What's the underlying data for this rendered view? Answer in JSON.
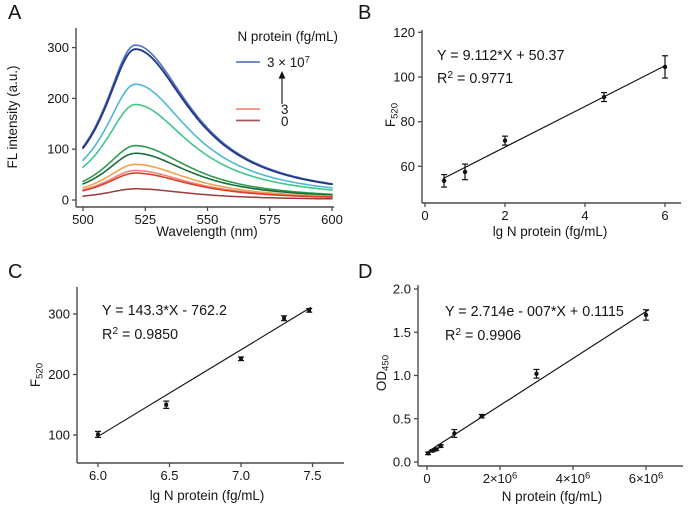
{
  "figure": {
    "background": "#ffffff",
    "axis_color": "#4a4a4a",
    "text_color": "#161616",
    "marker_color": "#111111"
  },
  "chart_data": [
    {
      "panel": "A",
      "type": "line",
      "xlabel": "Wavelength (nm)",
      "ylabel": "FL intensity (a.u.)",
      "xlim": [
        497,
        601
      ],
      "ylim": [
        0,
        340
      ],
      "grid": false,
      "xticks": [
        500,
        525,
        550,
        575,
        600
      ],
      "xtick_labels": [
        "500",
        "525",
        "550",
        "575",
        "600"
      ],
      "yticks": [
        0,
        100,
        200,
        300
      ],
      "ytick_labels": [
        "0",
        "100",
        "200",
        "300"
      ],
      "legend": {
        "title": "N protein (fg/mL)",
        "entries": [
          {
            "label": "3 × 10^{7}",
            "color": "#5d7ccf"
          },
          {
            "label": "3",
            "color": "#f28b7d"
          },
          {
            "label": "0",
            "color": "#b25454"
          }
        ],
        "arrow": "up"
      },
      "spectral_shape": {
        "peak_nm": 521,
        "gamma_left_nm": 15.2,
        "gamma_right_nm": 27,
        "x_start": 500,
        "x_end": 600,
        "x_step": 1
      },
      "series": [
        {
          "name": "curve-1-highest",
          "color": "#4e6ec9",
          "peak_intensity": 305,
          "width": 1.6
        },
        {
          "name": "curve-2",
          "color": "#253a85",
          "peak_intensity": 297,
          "width": 1.9
        },
        {
          "name": "curve-3",
          "color": "#4fb8d6",
          "peak_intensity": 228,
          "width": 1.6
        },
        {
          "name": "curve-4",
          "color": "#41c68a",
          "peak_intensity": 188,
          "width": 1.6
        },
        {
          "name": "curve-5",
          "color": "#2e9b4f",
          "peak_intensity": 107,
          "width": 1.6
        },
        {
          "name": "curve-6",
          "color": "#1d6b38",
          "peak_intensity": 92,
          "width": 1.6
        },
        {
          "name": "curve-7",
          "color": "#f0a352",
          "peak_intensity": 70,
          "width": 1.6
        },
        {
          "name": "curve-8",
          "color": "#ef8477",
          "peak_intensity": 58,
          "width": 1.6
        },
        {
          "name": "curve-9",
          "color": "#e03e2a",
          "peak_intensity": 53,
          "width": 1.6
        },
        {
          "name": "curve-10-blank",
          "color": "#9c3a3a",
          "peak_intensity": 22,
          "width": 1.5
        }
      ]
    },
    {
      "panel": "B",
      "type": "scatter",
      "marker": "circle",
      "equation": "Y = 9.112*X + 50.37",
      "r_squared": "R^{2} = 0.9771",
      "fit_line": {
        "slope": 9.112,
        "intercept": 50.37,
        "x_start": 0.45,
        "x_end": 6.03
      },
      "points": [
        {
          "x": 0.477,
          "y": 53.5,
          "err": 2.8
        },
        {
          "x": 1.0,
          "y": 57.5,
          "err": 3.5
        },
        {
          "x": 2.0,
          "y": 71.5,
          "err": 2.0
        },
        {
          "x": 4.477,
          "y": 91.0,
          "err": 2.0
        },
        {
          "x": 6.0,
          "y": 104.5,
          "err": 5.0
        }
      ],
      "xlabel": "lg N protein (fg/mL)",
      "ylabel": "F_{520}",
      "xticks": [
        0,
        2,
        4,
        6
      ],
      "xtick_labels": [
        "0",
        "2",
        "4",
        "6"
      ],
      "yticks": [
        60,
        80,
        100,
        120
      ],
      "ytick_labels": [
        "60",
        "80",
        "100",
        "120"
      ],
      "xlim": [
        -0.1,
        6.4
      ],
      "ylim": [
        43,
        120
      ],
      "grid": false
    },
    {
      "panel": "C",
      "type": "scatter",
      "marker": "square",
      "equation": "Y = 143.3*X - 762.2",
      "r_squared": "R^{2} = 0.9850",
      "fit_line": {
        "slope": 143.3,
        "intercept": -762.2,
        "x_start": 5.99,
        "x_end": 7.49
      },
      "points": [
        {
          "x": 6.0,
          "y": 101,
          "err": 5
        },
        {
          "x": 6.477,
          "y": 150,
          "err": 6
        },
        {
          "x": 7.0,
          "y": 226,
          "err": 3
        },
        {
          "x": 7.301,
          "y": 293,
          "err": 4
        },
        {
          "x": 7.477,
          "y": 306,
          "err": 3
        }
      ],
      "xlabel": "lg N protein (fg/mL)",
      "ylabel": "F_{520}",
      "xticks": [
        6.0,
        6.5,
        7.0,
        7.5
      ],
      "xtick_labels": [
        "6.0",
        "6.5",
        "7.0",
        "7.5"
      ],
      "yticks": [
        100,
        200,
        300
      ],
      "ytick_labels": [
        "100",
        "200",
        "300"
      ],
      "xlim": [
        5.84,
        7.72
      ],
      "ylim": [
        54,
        340
      ],
      "grid": false
    },
    {
      "panel": "D",
      "type": "scatter",
      "marker": "circle",
      "equation": "Y = 2.714e - 007*X + 0.1115",
      "r_squared": "R^{2} = 0.9906",
      "fit_line": {
        "slope": 2.714e-07,
        "intercept": 0.1115,
        "x_start": 40000,
        "x_end": 6080000
      },
      "points": [
        {
          "x": 30000,
          "y": 0.1,
          "err": 0.015
        },
        {
          "x": 150000,
          "y": 0.13,
          "err": 0.012
        },
        {
          "x": 250000,
          "y": 0.145,
          "err": 0.012
        },
        {
          "x": 375000,
          "y": 0.185,
          "err": 0.015
        },
        {
          "x": 750000,
          "y": 0.33,
          "err": 0.045
        },
        {
          "x": 1500000,
          "y": 0.53,
          "err": 0.02
        },
        {
          "x": 3000000,
          "y": 1.02,
          "err": 0.05
        },
        {
          "x": 6000000,
          "y": 1.7,
          "err": 0.06
        }
      ],
      "xlabel": "N protein (fg/mL)",
      "ylabel": "OD_{450}",
      "xticks": [
        0,
        2000000,
        4000000,
        6000000
      ],
      "xtick_labels": [
        "0",
        "2×10^{6}",
        "4×10^{6}",
        "6×10^{6}"
      ],
      "yticks": [
        0,
        0.5,
        1.0,
        1.5,
        2.0
      ],
      "ytick_labels": [
        "0.0",
        "0.5",
        "1.0",
        "1.5",
        "2.0"
      ],
      "xlim": [
        -250000,
        7000000
      ],
      "ylim": [
        -0.05,
        2.05
      ],
      "grid": false
    }
  ]
}
